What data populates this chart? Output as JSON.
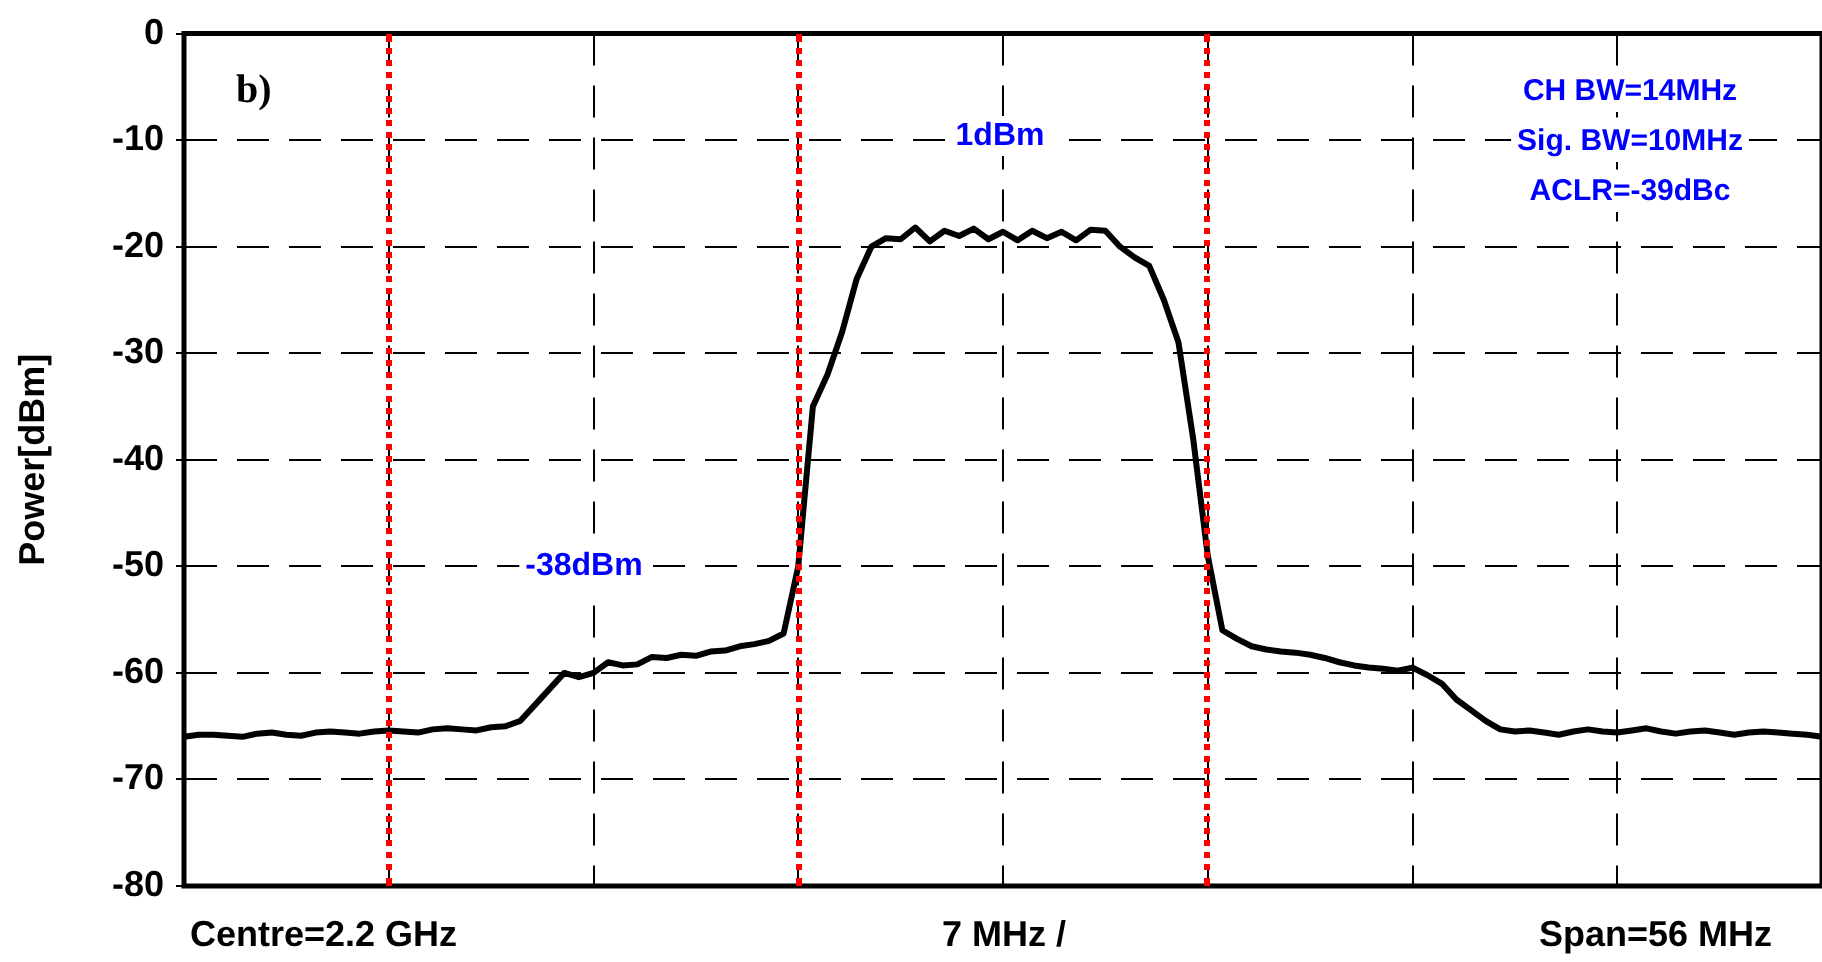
{
  "chart_data": {
    "type": "line",
    "ylabel": "Power[dBm]",
    "categories": [
      null,
      null,
      null,
      null,
      null,
      null,
      null,
      null,
      null,
      null,
      null,
      null,
      null,
      null,
      null,
      null,
      null,
      null,
      null,
      null,
      null,
      null,
      null,
      null,
      null,
      null,
      null,
      null,
      null,
      null,
      null,
      null,
      null,
      null,
      null,
      null,
      null,
      null,
      null,
      null,
      null,
      null,
      null,
      null,
      null,
      null,
      null,
      null,
      null,
      null,
      null,
      null,
      null,
      null,
      null,
      null,
      null,
      null,
      null,
      null,
      null,
      null,
      null,
      null,
      null,
      null,
      null,
      null,
      null,
      null,
      null,
      null,
      null,
      null,
      null,
      null,
      null,
      null,
      null,
      null,
      null,
      null,
      null,
      null,
      null,
      null,
      null,
      null,
      null,
      null,
      null,
      null,
      null,
      null,
      null,
      null,
      null,
      null,
      null,
      null,
      null,
      null,
      null,
      null,
      null,
      null,
      null,
      null,
      null,
      null,
      null,
      null,
      null
    ],
    "series": [
      {
        "color": "#000000",
        "values": [
          -66,
          -65.8,
          -65.8,
          -65.9,
          -66,
          -65.7,
          -65.6,
          -65.8,
          -65.9,
          -65.6,
          -65.5,
          -65.6,
          -65.7,
          -65.5,
          -65.4,
          -65.5,
          -65.6,
          -65.3,
          -65.2,
          -65.3,
          -65.4,
          -65.1,
          -65,
          -64.5,
          -63,
          -61.5,
          -60,
          -60.4,
          -60,
          -59,
          -59.3,
          -59.2,
          -58.5,
          -58.6,
          -58.3,
          -58.4,
          -58,
          -57.9,
          -57.5,
          -57.3,
          -57,
          -56.3,
          -50,
          -35,
          -32,
          -28,
          -23,
          -20,
          -19.2,
          -19.3,
          -18.2,
          -19.5,
          -18.5,
          -19,
          -18.3,
          -19.3,
          -18.6,
          -19.4,
          -18.5,
          -19.2,
          -18.6,
          -19.4,
          -18.4,
          -18.5,
          -20,
          -21,
          -21.8,
          -25,
          -29,
          -38,
          -49,
          -56,
          -56.8,
          -57.5,
          -57.8,
          -58,
          -58.1,
          -58.3,
          -58.6,
          -59,
          -59.3,
          -59.5,
          -59.6,
          -59.8,
          -59.5,
          -60.2,
          -61,
          -62.5,
          -63.5,
          -64.5,
          -65.3,
          -65.5,
          -65.4,
          -65.6,
          -65.8,
          -65.5,
          -65.3,
          -65.5,
          -65.6,
          -65.4,
          -65.2,
          -65.5,
          -65.7,
          -65.5,
          -65.4,
          -65.6,
          -65.8,
          -65.6,
          -65.5,
          -65.6,
          -65.7,
          -65.8,
          -66
        ]
      }
    ],
    "ylim": [
      -80,
      0
    ],
    "yticks": [
      -80,
      -70,
      -60,
      -50,
      -40,
      -30,
      -20,
      -10,
      0
    ],
    "tick_labels": "y",
    "grid": true,
    "legend": false,
    "marker": "none",
    "line_style": "solid",
    "annotations": [
      "b)",
      "1dBm",
      "-38dBm",
      "CH BW=14MHz",
      "Sig. BW=10MHz",
      "ACLR=-39dBc",
      "Centre=2.2 GHz",
      "7 MHz /",
      "Span=56 MHz"
    ]
  }
}
